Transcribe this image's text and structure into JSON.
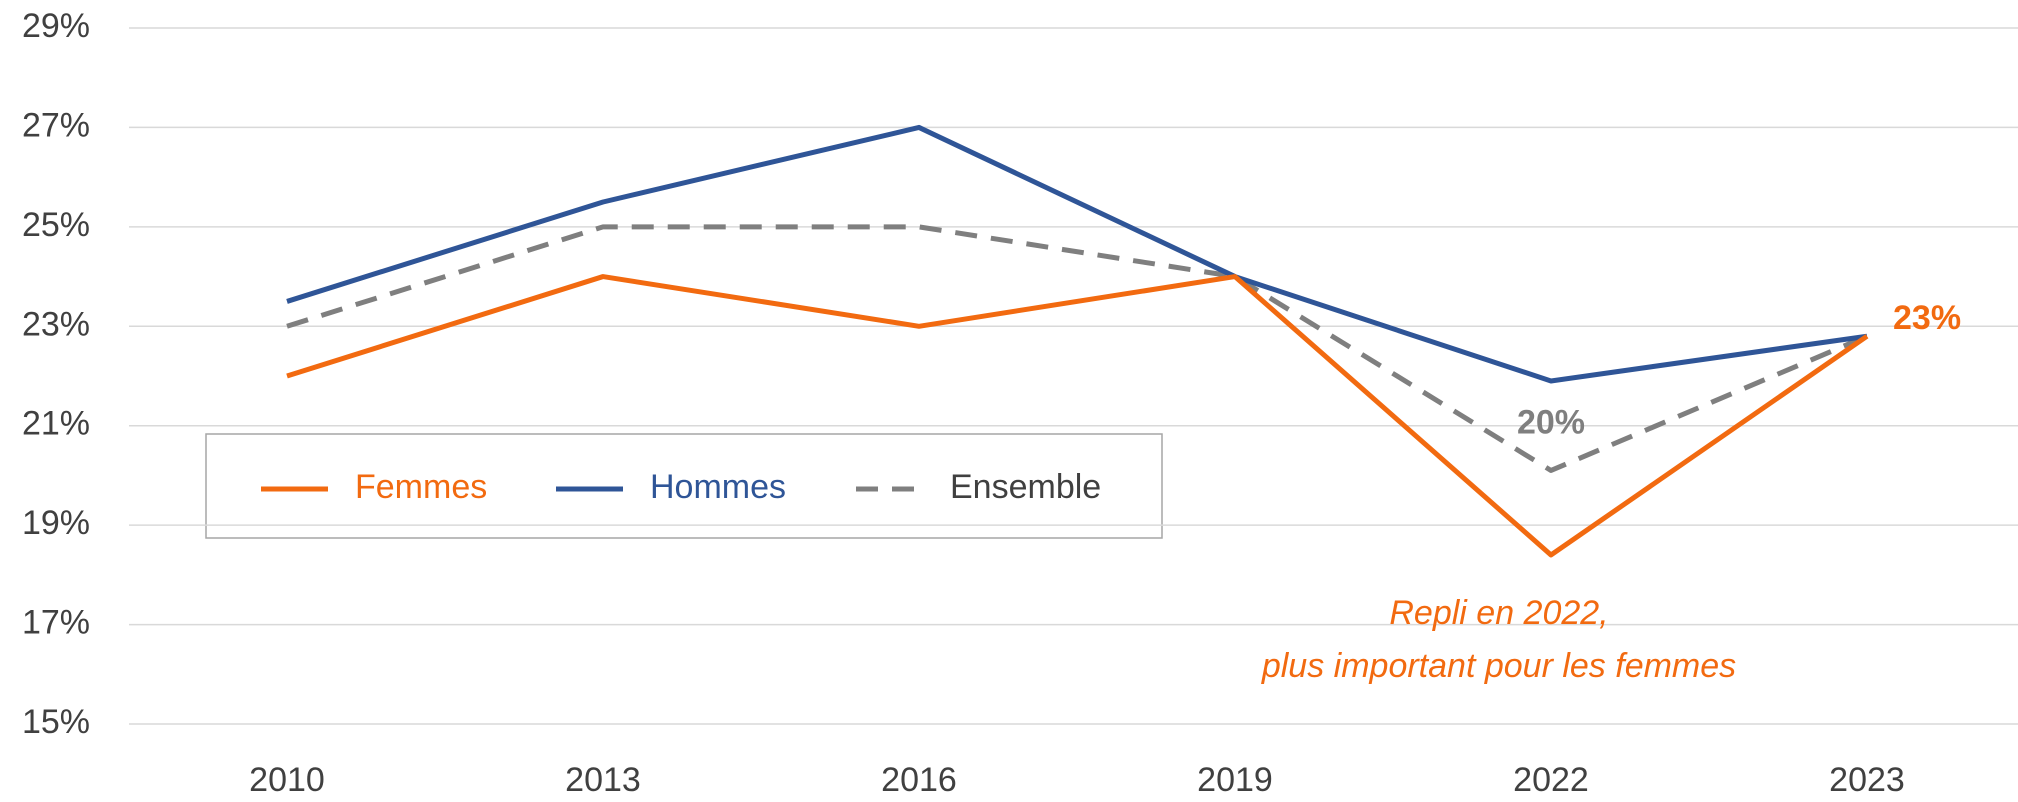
{
  "chart_data": {
    "type": "line",
    "categories": [
      "2010",
      "2013",
      "2016",
      "2019",
      "2022",
      "2023"
    ],
    "series": [
      {
        "name": "Femmes",
        "color": "#f26a10",
        "values": [
          22,
          24,
          23,
          24,
          18.4,
          22.8
        ],
        "value_labels": [
          null,
          null,
          null,
          null,
          null,
          "23%"
        ]
      },
      {
        "name": "Hommes",
        "color": "#2f5597",
        "values": [
          23.5,
          25.5,
          27,
          24,
          21.9,
          22.8
        ]
      },
      {
        "name": "Ensemble",
        "color": "#7f7f7f",
        "dashed": true,
        "values": [
          23,
          25,
          25,
          24,
          20.1,
          22.8
        ],
        "value_labels": [
          null,
          null,
          null,
          null,
          "20%",
          null
        ]
      }
    ],
    "ylim": [
      15,
      29
    ],
    "yticks": [
      {
        "value": 15,
        "label": "15%"
      },
      {
        "value": 17,
        "label": "17%"
      },
      {
        "value": 19,
        "label": "19%"
      },
      {
        "value": 21,
        "label": "21%"
      },
      {
        "value": 23,
        "label": "23%"
      },
      {
        "value": 25,
        "label": "25%"
      },
      {
        "value": 27,
        "label": "27%"
      },
      {
        "value": 29,
        "label": "29%"
      }
    ],
    "grid": true,
    "legend": "inside-left",
    "annotations": [
      "Repli en 2022,",
      "plus important pour les femmes"
    ]
  }
}
